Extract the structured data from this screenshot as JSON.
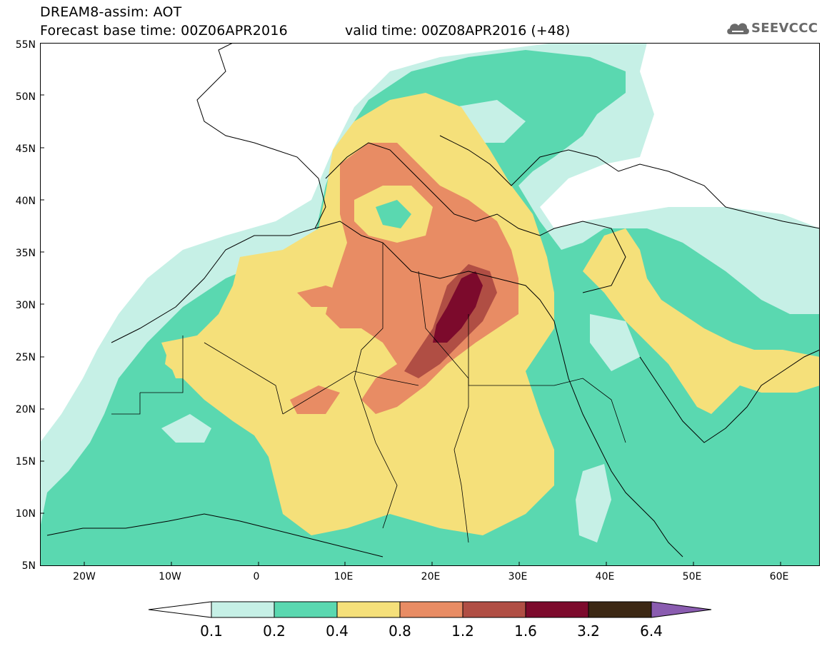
{
  "header": {
    "title_line1": "DREAM8-assim: AOT",
    "title_line2": "Forecast base time: 00Z06APR2016",
    "valid_time": "valid time: 00Z08APR2016 (+48)"
  },
  "logo": {
    "text": "SEEVCCC",
    "icon": "cloud-icon"
  },
  "map": {
    "lat_labels": [
      "55N",
      "50N",
      "45N",
      "40N",
      "35N",
      "30N",
      "25N",
      "20N",
      "15N",
      "10N",
      "5N"
    ],
    "lon_labels": [
      "20W",
      "10W",
      "0",
      "10E",
      "20E",
      "30E",
      "40E",
      "50E",
      "60E"
    ],
    "lon_range": [
      -25,
      65
    ],
    "lat_range": [
      5,
      55
    ]
  },
  "legend": {
    "levels": [
      "0.1",
      "0.2",
      "0.4",
      "0.8",
      "1.2",
      "1.6",
      "3.2",
      "6.4"
    ],
    "colors": [
      "#ffffff",
      "#c6f0e6",
      "#5ad8b0",
      "#f5e07a",
      "#e88c64",
      "#b04e44",
      "#7c0a2c",
      "#3c2814",
      "#8a5cb0"
    ]
  }
}
